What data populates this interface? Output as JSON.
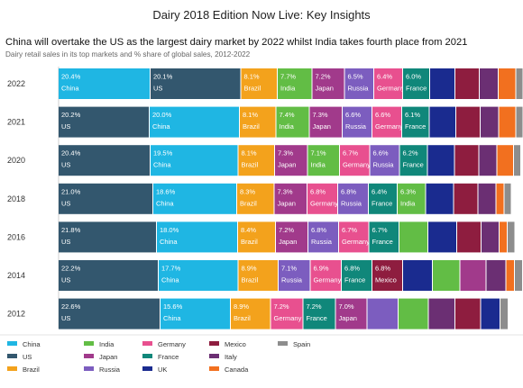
{
  "page_title": "Dairy 2018 Edition Now Live: Key Insights",
  "colors": {
    "China": "#1fb6e3",
    "US": "#33576e",
    "Brazil": "#f3a21c",
    "India": "#62bd45",
    "Japan": "#a13a8b",
    "Russia": "#7c5dbf",
    "Germany": "#e8508f",
    "France": "#10877a",
    "UK": "#1a2b8f",
    "Mexico": "#8e1d3f",
    "Italy": "#6b2f73",
    "Canada": "#f2701f",
    "Spain": "#8d8d8d"
  },
  "legend": [
    [
      "China",
      "US",
      "Brazil"
    ],
    [
      "India",
      "Japan",
      "Russia"
    ],
    [
      "Germany",
      "France",
      "UK"
    ],
    [
      "Mexico",
      "Italy",
      "Canada"
    ],
    [
      "Spain"
    ]
  ],
  "chart_data": {
    "type": "bar",
    "orientation": "horizontal",
    "stacked": true,
    "title": "China will overtake the US as the largest dairy market by 2022 whilst India takes fourth place from 2021",
    "subtitle": "Dairy retail sales in its top markets and % share of global sales, 2012-2022",
    "years": [
      "2022",
      "2021",
      "2020",
      "2018",
      "2016",
      "2014",
      "2012"
    ],
    "rows": [
      {
        "year": "2022",
        "segments": [
          {
            "market": "China",
            "value": 20.4,
            "label": "20.4%"
          },
          {
            "market": "US",
            "value": 20.1,
            "label": "20.1%"
          },
          {
            "market": "Brazil",
            "value": 8.1,
            "label": "8.1%"
          },
          {
            "market": "India",
            "value": 7.7,
            "label": "7.7%"
          },
          {
            "market": "Japan",
            "value": 7.2,
            "label": "7.2%"
          },
          {
            "market": "Russia",
            "value": 6.5,
            "label": "6.5%"
          },
          {
            "market": "Germany",
            "value": 6.4,
            "label": "6.4%"
          },
          {
            "market": "France",
            "value": 6.0,
            "label": "6.0%"
          },
          {
            "market": "UK",
            "value": 5.6
          },
          {
            "market": "Mexico",
            "value": 5.4
          },
          {
            "market": "Italy",
            "value": 4.2
          },
          {
            "market": "Canada",
            "value": 3.9
          },
          {
            "market": "Spain",
            "value": 1.6
          }
        ]
      },
      {
        "year": "2021",
        "segments": [
          {
            "market": "US",
            "value": 20.2,
            "label": "20.2%"
          },
          {
            "market": "China",
            "value": 20.0,
            "label": "20.0%"
          },
          {
            "market": "Brazil",
            "value": 8.1,
            "label": "8.1%"
          },
          {
            "market": "India",
            "value": 7.4,
            "label": "7.4%"
          },
          {
            "market": "Japan",
            "value": 7.3,
            "label": "7.3%"
          },
          {
            "market": "Russia",
            "value": 6.6,
            "label": "6.6%"
          },
          {
            "market": "Germany",
            "value": 6.6,
            "label": "6.6%"
          },
          {
            "market": "France",
            "value": 6.1,
            "label": "6.1%"
          },
          {
            "market": "UK",
            "value": 5.9
          },
          {
            "market": "Mexico",
            "value": 5.4
          },
          {
            "market": "Italy",
            "value": 4.1
          },
          {
            "market": "Canada",
            "value": 3.8
          },
          {
            "market": "Spain",
            "value": 1.6
          }
        ]
      },
      {
        "year": "2020",
        "segments": [
          {
            "market": "US",
            "value": 20.4,
            "label": "20.4%"
          },
          {
            "market": "China",
            "value": 19.5,
            "label": "19.5%"
          },
          {
            "market": "Brazil",
            "value": 8.1,
            "label": "8.1%"
          },
          {
            "market": "Japan",
            "value": 7.3,
            "label": "7.3%"
          },
          {
            "market": "India",
            "value": 7.1,
            "label": "7.1%"
          },
          {
            "market": "Germany",
            "value": 6.7,
            "label": "6.7%"
          },
          {
            "market": "Russia",
            "value": 6.6,
            "label": "6.6%"
          },
          {
            "market": "France",
            "value": 6.2,
            "label": "6.2%"
          },
          {
            "market": "UK",
            "value": 6.0
          },
          {
            "market": "Mexico",
            "value": 5.4
          },
          {
            "market": "Italy",
            "value": 4.0
          },
          {
            "market": "Canada",
            "value": 3.7
          },
          {
            "market": "Spain",
            "value": 1.6
          }
        ]
      },
      {
        "year": "2018",
        "segments": [
          {
            "market": "US",
            "value": 21.0,
            "label": "21.0%"
          },
          {
            "market": "China",
            "value": 18.6,
            "label": "18.6%"
          },
          {
            "market": "Brazil",
            "value": 8.3,
            "label": "8.3%"
          },
          {
            "market": "Japan",
            "value": 7.3,
            "label": "7.3%"
          },
          {
            "market": "Germany",
            "value": 6.8,
            "label": "6.8%"
          },
          {
            "market": "Russia",
            "value": 6.8,
            "label": "6.8%"
          },
          {
            "market": "France",
            "value": 6.4,
            "label": "6.4%"
          },
          {
            "market": "India",
            "value": 6.3,
            "label": "6.3%"
          },
          {
            "market": "UK",
            "value": 6.2
          },
          {
            "market": "Mexico",
            "value": 5.4
          },
          {
            "market": "Italy",
            "value": 4.0
          },
          {
            "market": "Canada",
            "value": 1.8
          },
          {
            "market": "Spain",
            "value": 1.6
          }
        ]
      },
      {
        "year": "2016",
        "segments": [
          {
            "market": "US",
            "value": 21.8,
            "label": "21.8%"
          },
          {
            "market": "China",
            "value": 18.0,
            "label": "18.0%"
          },
          {
            "market": "Brazil",
            "value": 8.4,
            "label": "8.4%"
          },
          {
            "market": "Japan",
            "value": 7.2,
            "label": "7.2%"
          },
          {
            "market": "Russia",
            "value": 6.8,
            "label": "6.8%"
          },
          {
            "market": "Germany",
            "value": 6.7,
            "label": "6.7%"
          },
          {
            "market": "France",
            "value": 6.7,
            "label": "6.7%"
          },
          {
            "market": "India",
            "value": 6.4
          },
          {
            "market": "UK",
            "value": 6.4
          },
          {
            "market": "Mexico",
            "value": 5.4
          },
          {
            "market": "Italy",
            "value": 4.0
          },
          {
            "market": "Canada",
            "value": 1.8
          },
          {
            "market": "Spain",
            "value": 1.7
          }
        ]
      },
      {
        "year": "2014",
        "segments": [
          {
            "market": "US",
            "value": 22.2,
            "label": "22.2%"
          },
          {
            "market": "China",
            "value": 17.7,
            "label": "17.7%"
          },
          {
            "market": "Brazil",
            "value": 8.9,
            "label": "8.9%"
          },
          {
            "market": "Russia",
            "value": 7.1,
            "label": "7.1%"
          },
          {
            "market": "Germany",
            "value": 6.9,
            "label": "6.9%"
          },
          {
            "market": "France",
            "value": 6.8,
            "label": "6.8%"
          },
          {
            "market": "Mexico",
            "value": 6.8,
            "label": "6.8%"
          },
          {
            "market": "UK",
            "value": 6.6
          },
          {
            "market": "India",
            "value": 6.1
          },
          {
            "market": "Japan",
            "value": 5.8
          },
          {
            "market": "Italy",
            "value": 4.4
          },
          {
            "market": "Canada",
            "value": 1.9
          },
          {
            "market": "Spain",
            "value": 1.8
          }
        ]
      },
      {
        "year": "2012",
        "segments": [
          {
            "market": "US",
            "value": 22.6,
            "label": "22.6%"
          },
          {
            "market": "China",
            "value": 15.6,
            "label": "15.6%"
          },
          {
            "market": "Brazil",
            "value": 8.9,
            "label": "8.9%"
          },
          {
            "market": "Germany",
            "value": 7.2,
            "label": "7.2%"
          },
          {
            "market": "France",
            "value": 7.2,
            "label": "7.2%"
          },
          {
            "market": "Japan",
            "value": 7.0,
            "label": "7.0%"
          },
          {
            "market": "Russia",
            "value": 6.9
          },
          {
            "market": "India",
            "value": 6.7
          },
          {
            "market": "Italy",
            "value": 5.9
          },
          {
            "market": "Mexico",
            "value": 5.7
          },
          {
            "market": "UK",
            "value": 4.3
          },
          {
            "market": "Spain",
            "value": 1.8
          }
        ]
      }
    ]
  }
}
